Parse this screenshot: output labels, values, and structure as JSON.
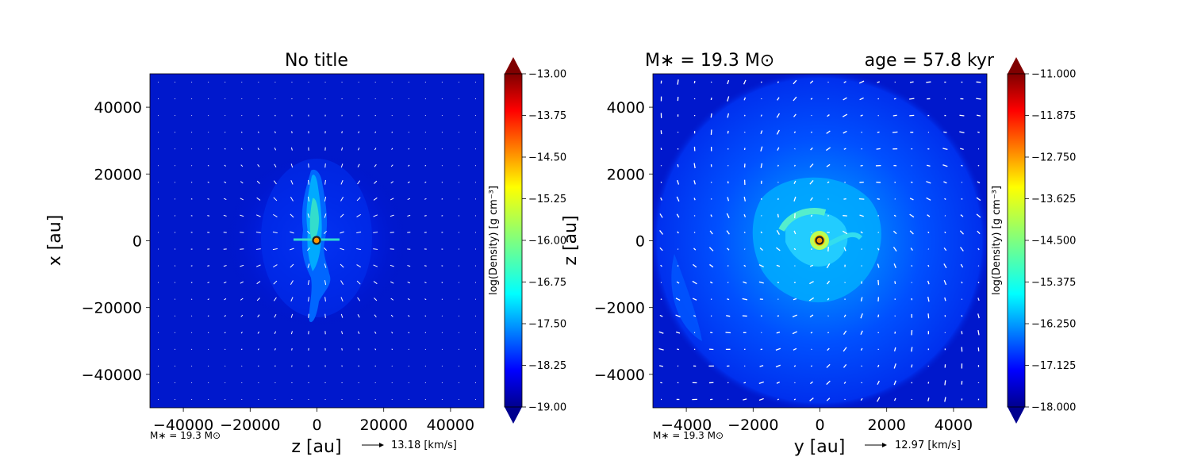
{
  "chart_data": [
    {
      "type": "heatmap",
      "title": "No title",
      "xlabel": "z [au]",
      "ylabel": "x [au]",
      "xlim": [
        -50000,
        50000
      ],
      "ylim": [
        -50000,
        50000
      ],
      "xticks": [
        -40000,
        -20000,
        0,
        20000,
        40000
      ],
      "yticks": [
        -40000,
        -20000,
        0,
        20000,
        40000
      ],
      "xtick_labels": [
        "−40000",
        "−20000",
        "0",
        "20000",
        "40000"
      ],
      "ytick_labels": [
        "−40000",
        "−20000",
        "0",
        "20000",
        "40000"
      ],
      "colorbar": {
        "label": "log(Density) [g cm⁻³]",
        "min": -19.0,
        "max": -13.0,
        "ticks": [
          -19.0,
          -18.25,
          -17.5,
          -16.75,
          -16.0,
          -15.25,
          -14.5,
          -13.75,
          -13.0
        ],
        "tick_labels": [
          "−19.00",
          "−18.25",
          "−17.50",
          "−16.75",
          "−16.00",
          "−15.25",
          "−14.50",
          "−13.75",
          "−13.00"
        ],
        "colormap": "jet",
        "extend": "both"
      },
      "mass_annotation": "M∗ = 19.3 M⊙",
      "quiver_key": {
        "value": 13.18,
        "label": "13.18 [km/s]"
      },
      "star": {
        "x": 0,
        "y": 0
      }
    },
    {
      "type": "heatmap",
      "title_left": "M∗ = 19.3 M⊙",
      "title_right": "age = 57.8 kyr",
      "xlabel": "y [au]",
      "ylabel": "z [au]",
      "xlim": [
        -5000,
        5000
      ],
      "ylim": [
        -5000,
        5000
      ],
      "xticks": [
        -4000,
        -2000,
        0,
        2000,
        4000
      ],
      "yticks": [
        -4000,
        -2000,
        0,
        2000,
        4000
      ],
      "xtick_labels": [
        "−4000",
        "−2000",
        "0",
        "2000",
        "4000"
      ],
      "ytick_labels": [
        "−4000",
        "−2000",
        "0",
        "2000",
        "4000"
      ],
      "colorbar": {
        "label": "log(Density) [g cm⁻³]",
        "min": -18.0,
        "max": -11.0,
        "ticks": [
          -18.0,
          -17.125,
          -16.25,
          -15.375,
          -14.5,
          -13.625,
          -12.75,
          -11.875,
          -11.0
        ],
        "tick_labels": [
          "−18.000",
          "−17.125",
          "−16.250",
          "−15.375",
          "−14.500",
          "−13.625",
          "−12.750",
          "−11.875",
          "−11.000"
        ],
        "colormap": "jet",
        "extend": "both"
      },
      "mass_annotation": "M∗ = 19.3 M⊙",
      "quiver_key": {
        "value": 12.97,
        "label": "12.97 [km/s]"
      },
      "star": {
        "x": 0,
        "y": 0
      }
    }
  ]
}
